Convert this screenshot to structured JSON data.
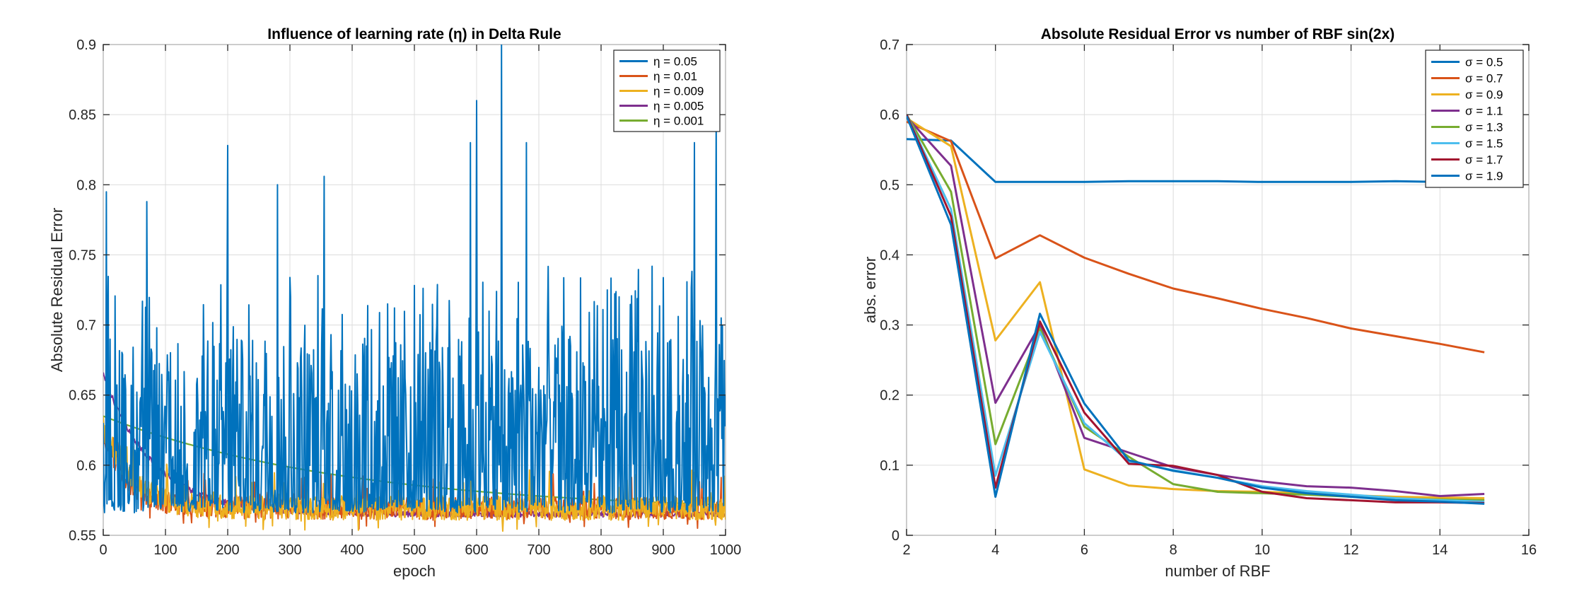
{
  "chart_data": [
    {
      "type": "line",
      "title": "Influence of learning rate (η) in Delta Rule",
      "xlabel": "epoch",
      "ylabel": "Absolute Residual Error",
      "xlim": [
        0,
        1000
      ],
      "ylim": [
        0.55,
        0.9
      ],
      "xticks": [
        0,
        100,
        200,
        300,
        400,
        500,
        600,
        700,
        800,
        900,
        1000
      ],
      "yticks": [
        0.55,
        0.6,
        0.65,
        0.7,
        0.75,
        0.8,
        0.85,
        0.9
      ],
      "grid": true,
      "legend_position": "top-right",
      "series": [
        {
          "name": "η = 0.05",
          "color": "#0072BD",
          "start": 0.6,
          "floor": 0.566,
          "decay": 5,
          "noise": "spiky",
          "noise_amp": 0.12,
          "spikes": [
            [
              5,
              0.795
            ],
            [
              70,
              0.788
            ],
            [
              200,
              0.828
            ],
            [
              280,
              0.8
            ],
            [
              355,
              0.806
            ],
            [
              590,
              0.83
            ],
            [
              600,
              0.86
            ],
            [
              640,
              0.9
            ],
            [
              680,
              0.83
            ],
            [
              950,
              0.83
            ],
            [
              985,
              0.855
            ]
          ]
        },
        {
          "name": "η = 0.01",
          "color": "#D95319",
          "start": 0.62,
          "floor": 0.566,
          "decay": 40,
          "noise": "medium",
          "noise_amp": 0.02,
          "spikes": []
        },
        {
          "name": "η = 0.009",
          "color": "#EDB120",
          "start": 0.625,
          "floor": 0.566,
          "decay": 45,
          "noise": "medium",
          "noise_amp": 0.022,
          "spikes": []
        },
        {
          "name": "η = 0.005",
          "color": "#7E2F8E",
          "start": 0.665,
          "floor": 0.565,
          "decay": 80,
          "noise": "low",
          "noise_amp": 0.004,
          "spikes": []
        },
        {
          "name": "η = 0.001",
          "color": "#77AC30",
          "start": 0.635,
          "floor": 0.566,
          "decay": 400,
          "noise": "none",
          "noise_amp": 0,
          "spikes": []
        }
      ]
    },
    {
      "type": "line",
      "title": "Absolute Residual Error vs number of RBF sin(2x)",
      "xlabel": "number of RBF",
      "ylabel": "abs. error",
      "xlim": [
        2,
        16
      ],
      "ylim": [
        0,
        0.7
      ],
      "xticks": [
        2,
        4,
        6,
        8,
        10,
        12,
        14,
        16
      ],
      "yticks": [
        0,
        0.1,
        0.2,
        0.3,
        0.4,
        0.5,
        0.6,
        0.7
      ],
      "grid": true,
      "legend_position": "top-right",
      "x": [
        2,
        3,
        4,
        5,
        6,
        7,
        8,
        9,
        10,
        11,
        12,
        13,
        14,
        15
      ],
      "series": [
        {
          "name": "σ = 0.5",
          "color": "#0072BD",
          "values": [
            0.565,
            0.563,
            0.504,
            0.504,
            0.504,
            0.505,
            0.505,
            0.505,
            0.504,
            0.504,
            0.504,
            0.505,
            0.504,
            0.504
          ]
        },
        {
          "name": "σ = 0.7",
          "color": "#D95319",
          "values": [
            0.59,
            0.562,
            0.395,
            0.428,
            0.396,
            0.373,
            0.352,
            0.338,
            0.323,
            0.31,
            0.295,
            0.284,
            0.273,
            0.261
          ]
        },
        {
          "name": "σ = 0.9",
          "color": "#EDB120",
          "values": [
            0.595,
            0.555,
            0.278,
            0.361,
            0.094,
            0.071,
            0.066,
            0.063,
            0.062,
            0.06,
            0.057,
            0.055,
            0.054,
            0.053
          ]
        },
        {
          "name": "σ = 1.1",
          "color": "#7E2F8E",
          "values": [
            0.597,
            0.527,
            0.189,
            0.3,
            0.139,
            0.118,
            0.097,
            0.086,
            0.077,
            0.07,
            0.068,
            0.063,
            0.056,
            0.059
          ]
        },
        {
          "name": "σ = 1.3",
          "color": "#77AC30",
          "values": [
            0.6,
            0.49,
            0.13,
            0.295,
            0.155,
            0.112,
            0.073,
            0.062,
            0.06,
            0.058,
            0.055,
            0.052,
            0.051,
            0.05
          ]
        },
        {
          "name": "σ = 1.5",
          "color": "#4DBEEE",
          "values": [
            0.6,
            0.465,
            0.085,
            0.29,
            0.16,
            0.105,
            0.093,
            0.082,
            0.07,
            0.063,
            0.058,
            0.053,
            0.05,
            0.048
          ]
        },
        {
          "name": "σ = 1.7",
          "color": "#A2142F",
          "values": [
            0.6,
            0.455,
            0.068,
            0.305,
            0.175,
            0.102,
            0.099,
            0.086,
            0.062,
            0.053,
            0.05,
            0.047,
            0.047,
            0.046
          ]
        },
        {
          "name": "σ = 1.9",
          "color": "#0072BD",
          "values": [
            0.598,
            0.443,
            0.055,
            0.316,
            0.188,
            0.107,
            0.092,
            0.082,
            0.068,
            0.06,
            0.055,
            0.05,
            0.048,
            0.045
          ]
        }
      ]
    }
  ]
}
